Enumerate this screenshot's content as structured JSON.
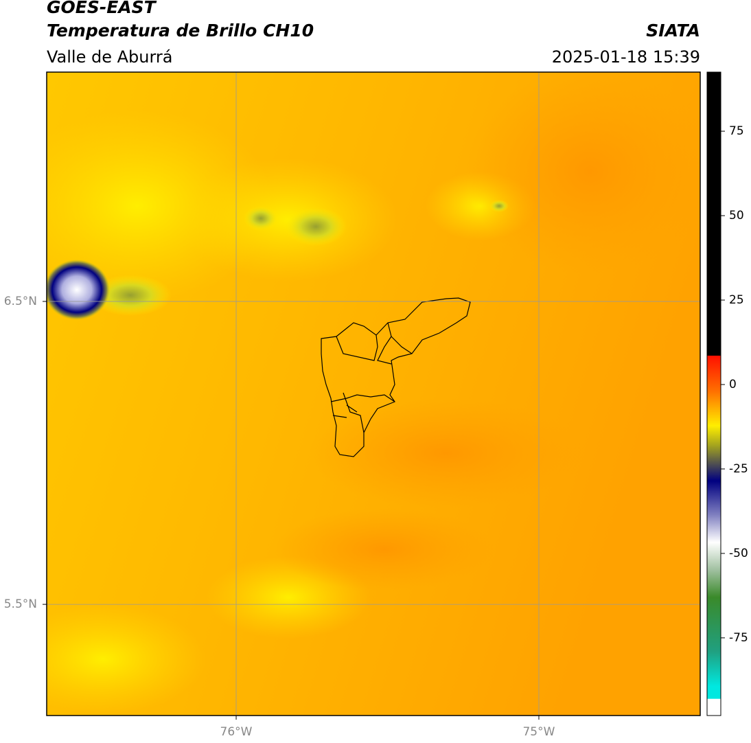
{
  "header": {
    "title": "GOES-EAST",
    "subtitle": "Temperatura de Brillo CH10",
    "region": "Valle de Aburrá",
    "source": "SIATA",
    "datetime": "2025-01-18 15:39"
  },
  "map": {
    "xlim": [
      -76.626,
      -74.467
    ],
    "ylim": [
      5.133,
      7.257
    ],
    "xticks": [
      {
        "value": -76,
        "label": "76°W"
      },
      {
        "value": -75,
        "label": "75°W"
      }
    ],
    "yticks": [
      {
        "value": 6.5,
        "label": "6.5°N"
      },
      {
        "value": 5.5,
        "label": "5.5°N"
      }
    ],
    "grid": true,
    "grid_color": "#999999"
  },
  "colorbar": {
    "lim": [
      -98,
      92.5
    ],
    "ticks": [
      75,
      50,
      25,
      0,
      -25,
      -50,
      -75
    ],
    "colorscale": [
      {
        "value": 92.5,
        "color": "#000000"
      },
      {
        "value": 8.6,
        "color": "#000000"
      },
      {
        "value": 8.5,
        "color": "#ff1000"
      },
      {
        "value": -2,
        "color": "#ff7000"
      },
      {
        "value": -12.2,
        "color": "#ffee00"
      },
      {
        "value": -18.3,
        "color": "#a0a020"
      },
      {
        "value": -28.5,
        "color": "#000080"
      },
      {
        "value": -38.6,
        "color": "#8080c0"
      },
      {
        "value": -46.7,
        "color": "#ffffff"
      },
      {
        "value": -54.9,
        "color": "#a0c0a0"
      },
      {
        "value": -63,
        "color": "#3a8a2a"
      },
      {
        "value": -79,
        "color": "#20a080"
      },
      {
        "value": -89.4,
        "color": "#00e8e0"
      },
      {
        "value": -93,
        "color": "#00e8e0"
      },
      {
        "value": -93.1,
        "color": "#ffffff"
      },
      {
        "value": -98,
        "color": "#ffffff"
      }
    ]
  }
}
